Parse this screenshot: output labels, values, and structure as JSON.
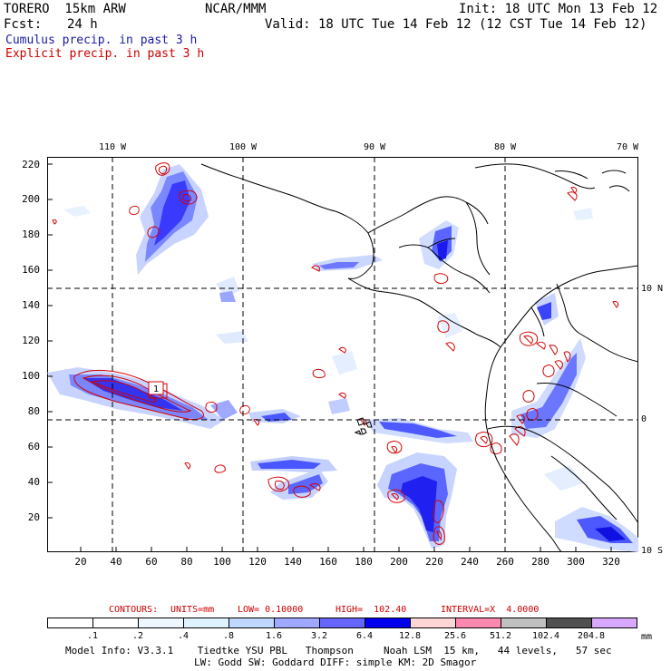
{
  "header": {
    "model": "TORERO  15km ARW",
    "org": "NCAR/MMM",
    "init": "Init: 18 UTC Mon 13 Feb 12",
    "fcst_label": "Fcst:",
    "fcst_value": "24 h",
    "valid": "Valid: 18 UTC Tue 14 Feb 12 (12 CST Tue 14 Feb 12)"
  },
  "legend_lines": {
    "cumulus": "Cumulus precip. in past 3 h",
    "explicit": "Explicit precip. in past 3 h",
    "cumulus_color": "#1a1aa6",
    "explicit_color": "#d40000"
  },
  "map": {
    "y_ticks": [
      "220",
      "200",
      "180",
      "160",
      "140",
      "120",
      "100",
      "80",
      "60",
      "40",
      "20"
    ],
    "x_ticks": [
      "20",
      "40",
      "60",
      "80",
      "100",
      "120",
      "140",
      "160",
      "180",
      "200",
      "220",
      "240",
      "260",
      "280",
      "300",
      "320"
    ],
    "lon_labels": [
      "110 W",
      "100 W",
      "90 W",
      "80 W",
      "70 W"
    ],
    "lat_labels": [
      "10 N",
      "0",
      "10 S"
    ],
    "high_marker": "1",
    "grid_style": "dashed"
  },
  "contours_info": {
    "label": "CONTOURS:",
    "units": "UNITS=mm",
    "low": "LOW= 0.10000",
    "high": "HIGH=  102.40",
    "interval": "INTERVAL=X  4.0000"
  },
  "colorbar": {
    "labels": [
      ".1",
      ".2",
      ".4",
      ".8",
      "1.6",
      "3.2",
      "6.4",
      "12.8",
      "25.6",
      "51.2",
      "102.4",
      "204.8"
    ],
    "colors": [
      "#ffffff",
      "#ffffff",
      "#eef7ff",
      "#dff2ff",
      "#c0d8ff",
      "#a0a8ff",
      "#6666ff",
      "#0000ee",
      "#ffd6d6",
      "#ff88b0",
      "#c0c0c0",
      "#505050",
      "#d8a8ff"
    ],
    "units": "mm"
  },
  "footer": {
    "line1": "Model Info: V3.3.1    Tiedtke YSU PBL   Thompson     Noah LSM  15 km,   44 levels,   57 sec",
    "line2": "LW: Godd SW: Goddard DIFF: simple KM: 2D Smagor"
  }
}
